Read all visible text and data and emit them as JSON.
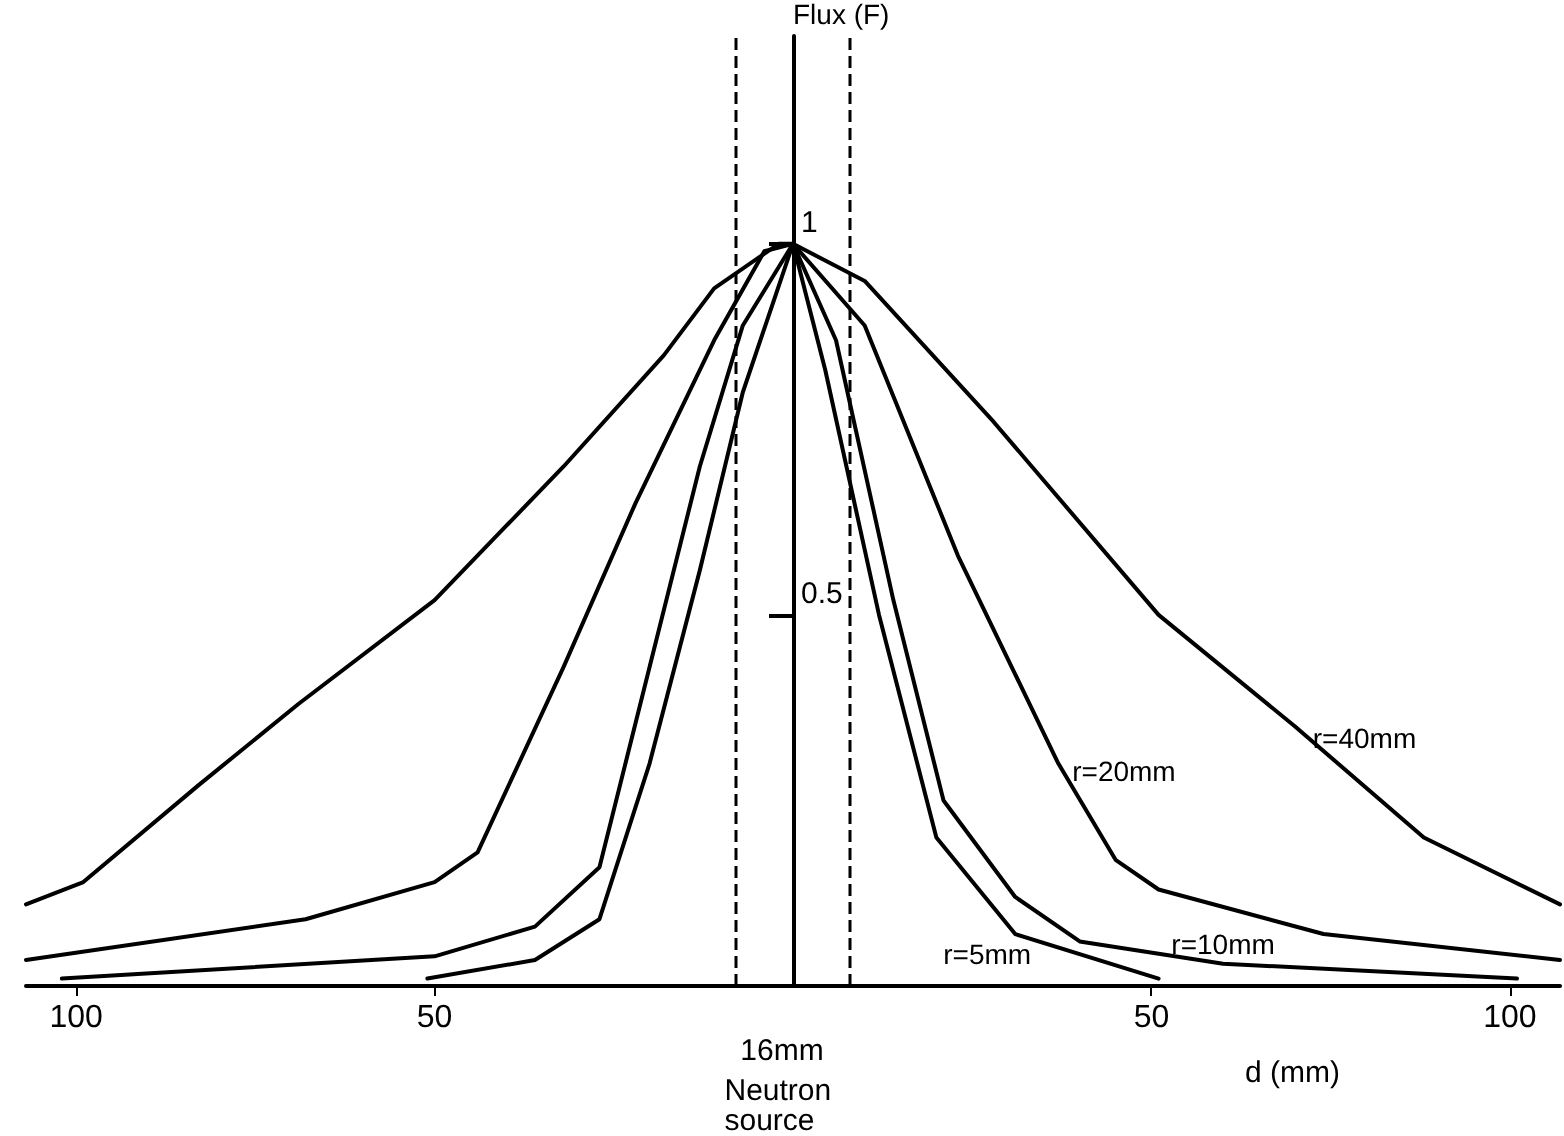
{
  "chart_data": {
    "type": "line",
    "xlabel": "d (mm)",
    "ylabel": "Flux (F)",
    "xlim": [
      -107,
      107
    ],
    "xticks": [
      {
        "value": -100,
        "label": "100"
      },
      {
        "value": -50,
        "label": "50"
      },
      {
        "value": 50,
        "label": "50"
      },
      {
        "value": 100,
        "label": "100"
      }
    ],
    "ylim": [
      0,
      1.28
    ],
    "yticks": [
      {
        "value": 0.5,
        "label": "0.5"
      },
      {
        "value": 1,
        "label": "1"
      }
    ],
    "grid": false,
    "legend": false,
    "marker": "none",
    "line_style": "solid",
    "series": [
      {
        "name": "r=40mm",
        "color": "#000000",
        "x": [
          -107,
          -99,
          -83,
          -69,
          -50,
          -32,
          -18,
          -11,
          -2,
          0,
          10,
          28,
          51,
          70,
          88,
          107
        ],
        "values": [
          0.11,
          0.14,
          0.27,
          0.38,
          0.52,
          0.7,
          0.85,
          0.94,
          1,
          1,
          0.95,
          0.76,
          0.5,
          0.35,
          0.2,
          0.11
        ]
      },
      {
        "name": "r=20mm",
        "color": "#000000",
        "x": [
          -107,
          -68,
          -50,
          -44,
          -32,
          -22,
          -11,
          -4,
          0,
          10,
          23,
          37,
          45,
          51,
          74,
          107
        ],
        "values": [
          0.035,
          0.09,
          0.14,
          0.18,
          0.43,
          0.65,
          0.87,
          0.99,
          1,
          0.89,
          0.58,
          0.3,
          0.17,
          0.13,
          0.07,
          0.035
        ]
      },
      {
        "name": "r=10mm",
        "color": "#000000",
        "x": [
          -102,
          -50,
          -36,
          -27,
          -20,
          -13,
          -7,
          0,
          6,
          14,
          21,
          31,
          40,
          60,
          101
        ],
        "values": [
          0.01,
          0.04,
          0.08,
          0.16,
          0.43,
          0.7,
          0.89,
          1,
          0.87,
          0.52,
          0.25,
          0.12,
          0.06,
          0.03,
          0.01
        ]
      },
      {
        "name": "r=5mm",
        "color": "#000000",
        "x": [
          -51,
          -36,
          -27,
          -20,
          -13,
          -7,
          0,
          4.5,
          12,
          20,
          31,
          51
        ],
        "values": [
          0.01,
          0.035,
          0.09,
          0.3,
          0.56,
          0.8,
          1,
          0.83,
          0.5,
          0.2,
          0.07,
          0.01
        ]
      }
    ],
    "ref_lines": [
      {
        "axis": "x",
        "value": -8,
        "line_style": "dashed"
      },
      {
        "axis": "x",
        "value": 8,
        "line_style": "dashed"
      }
    ],
    "annotations": [
      "16mm",
      "Neutron source"
    ]
  }
}
